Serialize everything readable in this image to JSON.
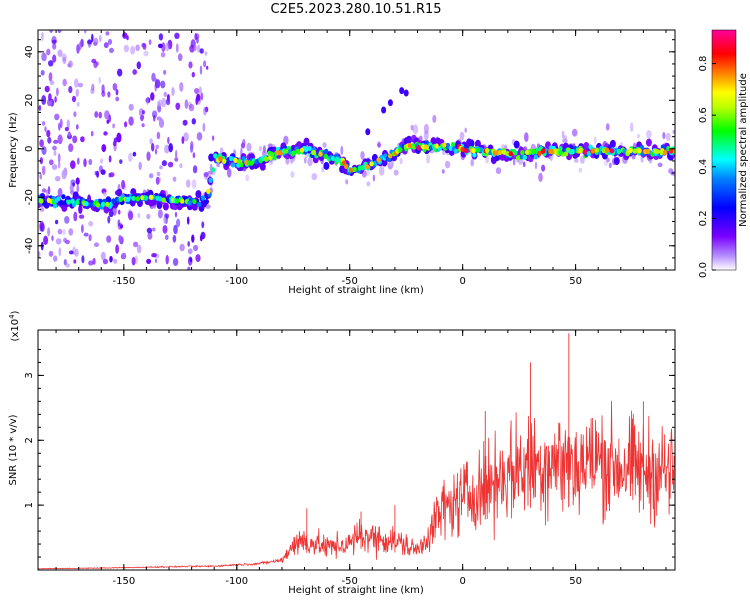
{
  "page": {
    "title": "C2E5.2023.280.10.51.R15"
  },
  "chart_data": [
    {
      "type": "heatmap",
      "title": "C2E5.2023.280.10.51.R15",
      "xlabel": "Height of straight line (km)",
      "ylabel": "Frequency (Hz)",
      "xlim": [
        -188,
        94
      ],
      "ylim": [
        -50,
        49
      ],
      "x_ticks": [
        -150,
        -100,
        -50,
        0,
        50
      ],
      "y_ticks": [
        -40,
        -20,
        0,
        20,
        40
      ],
      "colorbar": {
        "label": "Normalized spectral amplitude",
        "range": [
          0,
          0.93
        ],
        "ticks": [
          0.0,
          0.2,
          0.4,
          0.6,
          0.8
        ],
        "colors": [
          "#ffffff",
          "#7a00ff",
          "#0000ff",
          "#00ffff",
          "#00ff00",
          "#ffff00",
          "#ff7f00",
          "#ff0000",
          "#ff00aa"
        ]
      },
      "ridge": {
        "x": [
          -188,
          -175,
          -160,
          -150,
          -140,
          -130,
          -120,
          -113,
          -110,
          -100,
          -95,
          -90,
          -85,
          -80,
          -75,
          -70,
          -65,
          -60,
          -55,
          -52,
          -50,
          -45,
          -40,
          -35,
          -30,
          -25,
          -20,
          -10,
          0,
          10,
          20,
          30,
          40,
          50,
          60,
          70,
          80,
          94
        ],
        "y": [
          -21,
          -22,
          -23,
          -21,
          -20,
          -21,
          -22,
          -21,
          -4,
          -5,
          -6,
          -5,
          -3,
          -1,
          -1,
          0,
          -2,
          -3,
          -4,
          -6,
          -9,
          -8,
          -6,
          -4,
          -2,
          1,
          1,
          1,
          0,
          -1,
          -2,
          -2,
          -1,
          -1,
          -1,
          -1,
          -1,
          -1
        ]
      }
    },
    {
      "type": "line",
      "title": "",
      "xlabel": "Height of straight line (km)",
      "ylabel": "SNR (10 * v/v)",
      "y_multiplier": "(x10",
      "y_multiplier_exp": "4",
      "xlim": [
        -188,
        94
      ],
      "ylim": [
        0,
        3.7
      ],
      "x_ticks": [
        -150,
        -100,
        -50,
        0,
        50
      ],
      "y_ticks": [
        1,
        2,
        3
      ],
      "series": [
        {
          "color": "#ee3333",
          "trend": {
            "x": [
              -188,
              -160,
              -130,
              -110,
              -100,
              -90,
              -80,
              -75,
              -70,
              -60,
              -50,
              -45,
              -40,
              -30,
              -20,
              -15,
              -10,
              -5,
              0,
              5,
              10,
              20,
              30,
              40,
              50,
              60,
              70,
              80,
              94
            ],
            "y": [
              0.02,
              0.03,
              0.05,
              0.06,
              0.08,
              0.1,
              0.15,
              0.4,
              0.45,
              0.35,
              0.4,
              0.55,
              0.5,
              0.45,
              0.3,
              0.55,
              0.9,
              1.0,
              1.1,
              1.2,
              1.3,
              1.5,
              1.6,
              1.7,
              1.6,
              1.7,
              1.6,
              1.55,
              1.5
            ]
          },
          "peaks": [
            [
              -69,
              0.95
            ],
            [
              -45,
              0.9
            ],
            [
              -30,
              1.0
            ],
            [
              10,
              2.45
            ],
            [
              30,
              3.2
            ],
            [
              47,
              3.65
            ],
            [
              80,
              2.6
            ]
          ]
        }
      ]
    }
  ]
}
